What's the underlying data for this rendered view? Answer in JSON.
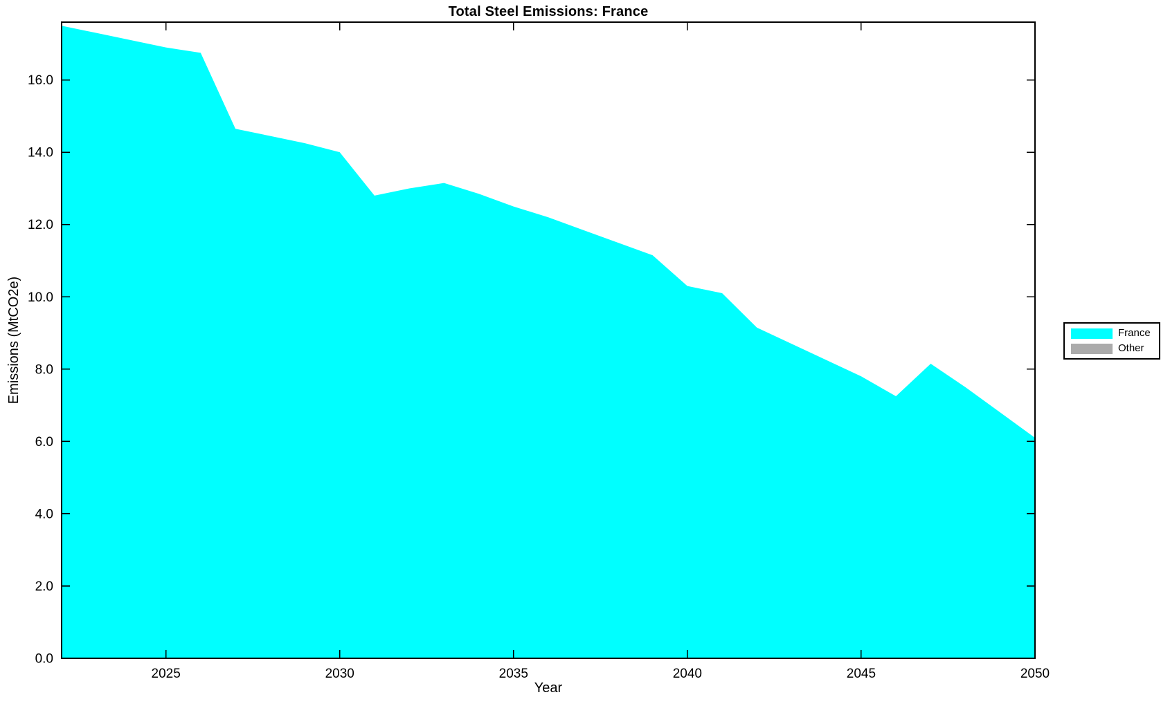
{
  "title": "Total Steel Emissions: France",
  "colors": {
    "france_fill": "#00ffff",
    "other_fill": "#ababab",
    "axis": "#000000",
    "background": "#ffffff"
  },
  "chart_data": {
    "type": "area",
    "title": "Total Steel Emissions: France",
    "xlabel": "Year",
    "ylabel": "Emissions (MtCO2e)",
    "xlim": [
      2022,
      2050
    ],
    "ylim": [
      0,
      17.6
    ],
    "x_ticks": [
      2025,
      2030,
      2035,
      2040,
      2045,
      2050
    ],
    "y_ticks": [
      0.0,
      2.0,
      4.0,
      6.0,
      8.0,
      10.0,
      12.0,
      14.0,
      16.0
    ],
    "y_tick_labels": [
      "0.0",
      "2.0",
      "4.0",
      "6.0",
      "8.0",
      "10.0",
      "12.0",
      "14.0",
      "16.0"
    ],
    "x_tick_labels": [
      "2025",
      "2030",
      "2035",
      "2040",
      "2045",
      "2050"
    ],
    "grid": false,
    "legend_position": "outside-right",
    "stacked": true,
    "x": [
      2022,
      2023,
      2024,
      2025,
      2026,
      2027,
      2028,
      2029,
      2030,
      2031,
      2032,
      2033,
      2034,
      2035,
      2036,
      2037,
      2038,
      2039,
      2040,
      2041,
      2042,
      2043,
      2044,
      2045,
      2046,
      2047,
      2048,
      2049,
      2050
    ],
    "series": [
      {
        "name": "France",
        "color": "#00ffff",
        "values": [
          17.5,
          17.3,
          17.1,
          16.9,
          16.75,
          14.65,
          14.45,
          14.25,
          14.0,
          12.8,
          13.0,
          13.15,
          12.85,
          12.5,
          12.2,
          11.85,
          11.5,
          11.15,
          10.3,
          10.1,
          9.15,
          8.7,
          8.25,
          7.8,
          7.25,
          8.15,
          7.5,
          6.8,
          6.1
        ]
      },
      {
        "name": "Other",
        "color": "#ababab",
        "values": [
          0,
          0,
          0,
          0,
          0,
          0,
          0,
          0,
          0,
          0,
          0,
          0,
          0,
          0,
          0,
          0,
          0,
          0,
          0,
          0,
          0,
          0,
          0,
          0,
          0,
          0,
          0,
          0,
          0
        ]
      }
    ]
  },
  "legend": {
    "entries": [
      {
        "label": "France",
        "color": "#00ffff"
      },
      {
        "label": "Other",
        "color": "#ababab"
      }
    ]
  }
}
